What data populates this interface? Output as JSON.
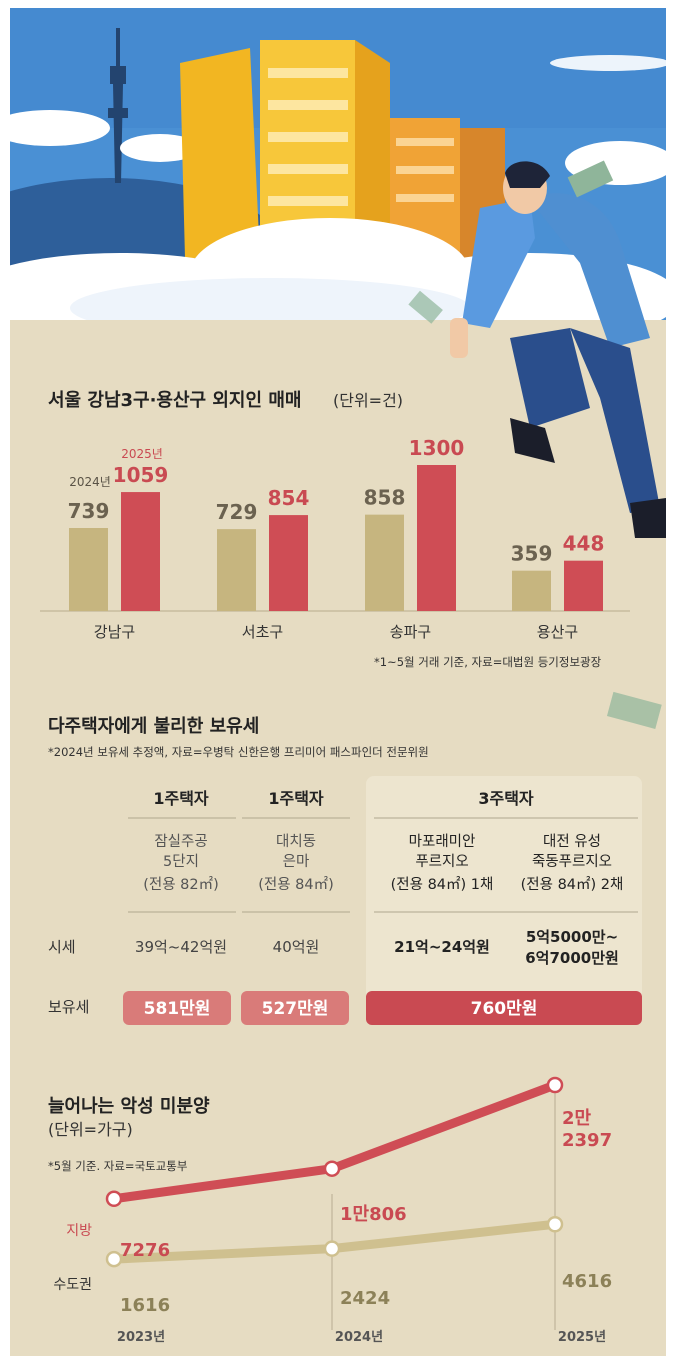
{
  "chart_data": [
    {
      "type": "bar",
      "title": "서울 강남3구·용산구 외지인 매매",
      "unit": "(단위=건)",
      "categories": [
        "강남구",
        "서초구",
        "송파구",
        "용산구"
      ],
      "series": [
        {
          "name": "2024년",
          "values": [
            739,
            729,
            858,
            359
          ]
        },
        {
          "name": "2025년",
          "values": [
            1059,
            854,
            1300,
            448
          ]
        }
      ],
      "value_labels": {
        "2024년": [
          "739",
          "729",
          "858",
          "359"
        ],
        "2025년": [
          "1059",
          "854",
          "1300",
          "448"
        ]
      },
      "ylim": [
        0,
        1300
      ],
      "note": "*1~5월 거래 기준, 자료=대법원 등기정보광장"
    },
    {
      "type": "table",
      "title": "다주택자에게 불리한 보유세",
      "note": "*2024년 보유세 추정액, 자료=우병탁 신한은행 프리미어 패스파인더 전문위원",
      "columns": [
        {
          "group": "1주택자",
          "property": [
            "잠실주공",
            "5단지",
            "(전용 82㎡)"
          ],
          "price": [
            "39억~42억원"
          ]
        },
        {
          "group": "1주택자",
          "property": [
            "대치동",
            "은마",
            "(전용 84㎡)"
          ],
          "price": [
            "40억원"
          ]
        },
        {
          "group": "3주택자",
          "property": [
            "마포래미안",
            "푸르지오",
            "(전용 84㎡) 1채"
          ],
          "price": [
            "21억~24억원"
          ]
        },
        {
          "group": "3주택자",
          "property": [
            "대전 유성",
            "죽동푸르지오",
            "(전용 84㎡) 2채"
          ],
          "price": [
            "5억5000만~",
            "6억7000만원"
          ]
        }
      ],
      "row_labels": {
        "price": "시세",
        "tax": "보유세"
      },
      "tax": [
        "581만원",
        "527만원",
        "760만원"
      ]
    },
    {
      "type": "line",
      "title": "늘어나는 악성 미분양",
      "unit": "(단위=가구)",
      "note": "*5월 기준. 자료=국토교통부",
      "x": [
        "2023년",
        "2024년",
        "2025년"
      ],
      "series": [
        {
          "name": "지방",
          "values": [
            7276,
            10806,
            22397
          ],
          "labels": [
            [
              "7276"
            ],
            [
              "1만806"
            ],
            [
              "2만",
              "2397"
            ]
          ]
        },
        {
          "name": "수도권",
          "values": [
            1616,
            2424,
            4616
          ],
          "labels": [
            [
              "1616"
            ],
            [
              "2424"
            ],
            [
              "4616"
            ]
          ]
        }
      ]
    }
  ],
  "colors": {
    "background": "#e6dcc2",
    "bar_2024": "#c6b57f",
    "bar_2025": "#cf4d55",
    "line_local": "#cf4d55",
    "line_capital": "#cfc08f",
    "tax_pill_light": "#d97b79",
    "tax_pill_dark": "#c94a52",
    "sky": "#4a90d4"
  }
}
